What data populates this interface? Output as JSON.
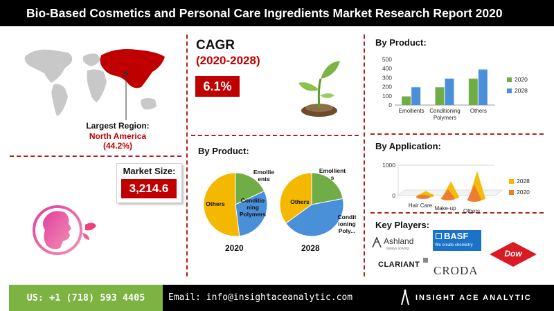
{
  "header": {
    "title": "Bio-Based Cosmetics and Personal Care Ingredients Market Research Report 2020"
  },
  "region": {
    "label": "Largest Region:",
    "name": "North America",
    "share": "(44.2%)"
  },
  "market_size": {
    "label": "Market Size:",
    "value": "3,214.6"
  },
  "cagr": {
    "title": "CAGR",
    "period": "(2020-2028)",
    "value": "6.1%"
  },
  "pies": {
    "title": "By Product:",
    "pie_2020": {
      "year": "2020",
      "labels": [
        "Emollie\nents",
        "Conditio\nning\nPolymers",
        "Others"
      ]
    },
    "pie_2028": {
      "year": "2028",
      "labels": [
        "Emollient\ns",
        "Condit\nioning\nPoly...",
        "Others"
      ]
    }
  },
  "bar": {
    "title": "By Product:"
  },
  "application": {
    "title": "By Application:"
  },
  "key_players": {
    "title": "Key Players:",
    "ashland": "Ashland",
    "ashland_tag": "always solving",
    "basf": "BASF",
    "basf_tag": "We create chemistry",
    "clariant": "CLARIANT",
    "croda": "CRODA",
    "dow": "Dow"
  },
  "footer": {
    "phone": "US: +1 (718) 593 4405",
    "email": "Email: info@insightaceanalytic.com",
    "brand": "INSIGHT ACE ANALYTIC"
  },
  "colors": {
    "accent_red": "#c00000",
    "green": "#7cb342",
    "blue": "#4a90d9",
    "yellow": "#f5b800"
  },
  "chart_data": [
    {
      "type": "pie",
      "title": "2020",
      "categories": [
        "Emollients",
        "Conditioning Polymers",
        "Others"
      ],
      "values": [
        18,
        30,
        52
      ],
      "colors": [
        "#70ad47",
        "#4a90d9",
        "#f5b800"
      ]
    },
    {
      "type": "pie",
      "title": "2028",
      "categories": [
        "Emollients",
        "Conditioning Polymers",
        "Others"
      ],
      "values": [
        22,
        43,
        35
      ],
      "colors": [
        "#70ad47",
        "#4a90d9",
        "#f5b800"
      ]
    },
    {
      "type": "bar",
      "categories": [
        "Emollients",
        "Conditioning Polymers",
        "Others"
      ],
      "series": [
        {
          "name": "2020",
          "values": [
            95,
            195,
            290
          ],
          "color": "#70ad47"
        },
        {
          "name": "2028",
          "values": [
            195,
            290,
            390
          ],
          "color": "#4a90d9"
        }
      ],
      "ylim": [
        0,
        500
      ],
      "yticks": [
        0,
        100,
        200,
        300,
        400,
        500
      ],
      "legend": "right",
      "grid": false
    },
    {
      "type": "bar",
      "shape": "cone",
      "categories": [
        "Hair Care",
        "Make-up",
        "Others"
      ],
      "series": [
        {
          "name": "2028",
          "values": [
            150,
            520,
            900
          ],
          "color": "#f5b800"
        },
        {
          "name": "2020",
          "values": [
            50,
            300,
            500
          ],
          "color": "#ed7d31"
        }
      ],
      "yticks": [
        0,
        1000
      ],
      "legend": "right",
      "grid": true
    }
  ]
}
